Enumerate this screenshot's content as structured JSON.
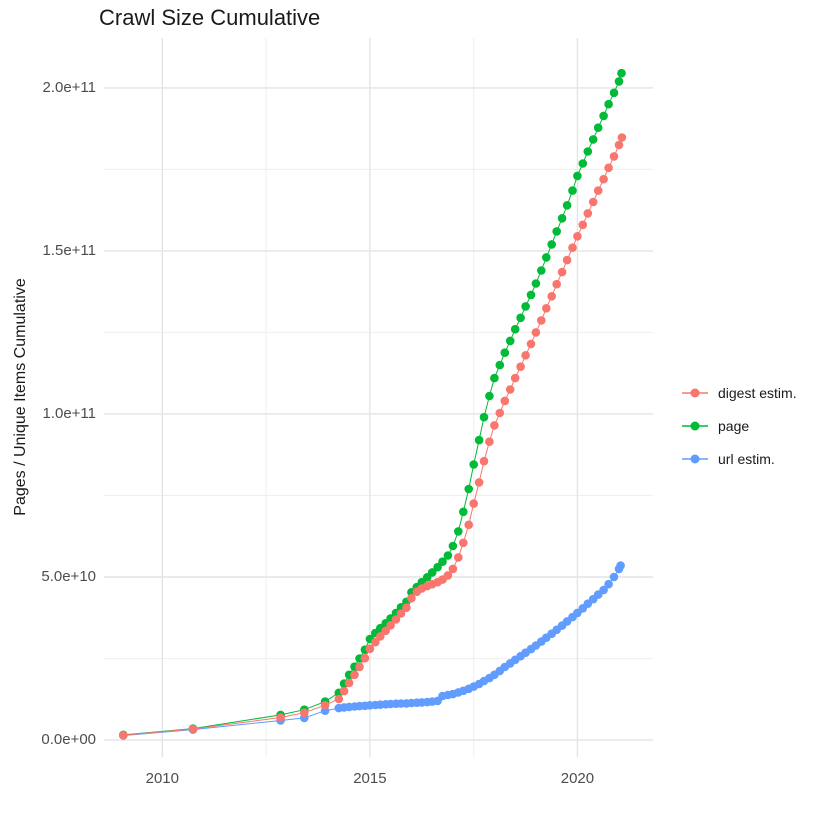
{
  "chart_data": {
    "type": "scatter",
    "title": "Crawl Size Cumulative",
    "ylabel": "Pages / Unique Items Cumulative",
    "xlabel": "",
    "background_color": "#FFFFFF",
    "grid": {
      "major_color": "#E4E4E4",
      "minor_color": "#F0F0F0",
      "grid_on": true
    },
    "x_axis": {
      "range": [
        2008.595,
        2021.82
      ],
      "major_ticks": [
        {
          "value": 2010,
          "label": "2010"
        },
        {
          "value": 2015,
          "label": "2015"
        },
        {
          "value": 2020,
          "label": "2020"
        }
      ],
      "minor_ticks": [
        2012.5,
        2017.5
      ]
    },
    "y_axis": {
      "unit_multiplier": 1000000000.0,
      "range_e9": [
        -5.2,
        215.3
      ],
      "major_ticks": [
        {
          "value_e9": 0,
          "label": "0.0e+00"
        },
        {
          "value_e9": 50,
          "label": "5.0e+10"
        },
        {
          "value_e9": 100,
          "label": "1.0e+11"
        },
        {
          "value_e9": 150,
          "label": "1.5e+11"
        },
        {
          "value_e9": 200,
          "label": "2.0e+11"
        }
      ],
      "minor_ticks_e9": [
        25,
        75,
        125,
        175
      ]
    },
    "legend": {
      "position": "right"
    },
    "series": [
      {
        "name": "digest estim.",
        "color": "#F8766D",
        "points_year_value_e9": [
          [
            2009.06,
            1.5
          ],
          [
            2010.74,
            3.4
          ],
          [
            2012.85,
            6.9
          ],
          [
            2013.42,
            8.4
          ],
          [
            2013.92,
            10.7
          ],
          [
            2014.25,
            12.6
          ],
          [
            2014.38,
            15.0
          ],
          [
            2014.5,
            17.5
          ],
          [
            2014.63,
            20.0
          ],
          [
            2014.75,
            22.4
          ],
          [
            2014.88,
            25.1
          ],
          [
            2015.0,
            28.0
          ],
          [
            2015.13,
            30.0
          ],
          [
            2015.25,
            31.8
          ],
          [
            2015.38,
            33.5
          ],
          [
            2015.5,
            35.2
          ],
          [
            2015.63,
            37.0
          ],
          [
            2015.75,
            38.8
          ],
          [
            2015.88,
            40.6
          ],
          [
            2016.0,
            43.5
          ],
          [
            2016.13,
            45.5
          ],
          [
            2016.25,
            46.5
          ],
          [
            2016.38,
            47.2
          ],
          [
            2016.5,
            47.8
          ],
          [
            2016.63,
            48.4
          ],
          [
            2016.75,
            49.2
          ],
          [
            2016.88,
            50.5
          ],
          [
            2017.0,
            52.5
          ],
          [
            2017.13,
            56.0
          ],
          [
            2017.25,
            60.5
          ],
          [
            2017.38,
            66.0
          ],
          [
            2017.5,
            72.5
          ],
          [
            2017.63,
            79.0
          ],
          [
            2017.75,
            85.5
          ],
          [
            2017.88,
            91.5
          ],
          [
            2018.0,
            96.5
          ],
          [
            2018.13,
            100.3
          ],
          [
            2018.25,
            104.0
          ],
          [
            2018.38,
            107.5
          ],
          [
            2018.5,
            111.0
          ],
          [
            2018.63,
            114.5
          ],
          [
            2018.75,
            118.0
          ],
          [
            2018.88,
            121.5
          ],
          [
            2019.0,
            125.0
          ],
          [
            2019.13,
            128.7
          ],
          [
            2019.25,
            132.4
          ],
          [
            2019.38,
            136.1
          ],
          [
            2019.5,
            139.8
          ],
          [
            2019.63,
            143.5
          ],
          [
            2019.75,
            147.2
          ],
          [
            2019.88,
            151.0
          ],
          [
            2020.0,
            154.5
          ],
          [
            2020.13,
            158.0
          ],
          [
            2020.25,
            161.5
          ],
          [
            2020.38,
            165.0
          ],
          [
            2020.5,
            168.5
          ],
          [
            2020.63,
            172.0
          ],
          [
            2020.75,
            175.5
          ],
          [
            2020.88,
            179.0
          ],
          [
            2021.0,
            182.5
          ],
          [
            2021.07,
            184.8
          ]
        ]
      },
      {
        "name": "page",
        "color": "#00BA38",
        "points_year_value_e9": [
          [
            2009.06,
            1.6
          ],
          [
            2010.74,
            3.5
          ],
          [
            2012.85,
            7.7
          ],
          [
            2013.42,
            9.3
          ],
          [
            2013.92,
            11.8
          ],
          [
            2014.25,
            14.5
          ],
          [
            2014.38,
            17.3
          ],
          [
            2014.5,
            20.0
          ],
          [
            2014.63,
            22.5
          ],
          [
            2014.75,
            25.0
          ],
          [
            2014.88,
            27.7
          ],
          [
            2015.0,
            31.0
          ],
          [
            2015.13,
            32.8
          ],
          [
            2015.25,
            34.3
          ],
          [
            2015.38,
            35.8
          ],
          [
            2015.5,
            37.3
          ],
          [
            2015.63,
            39.0
          ],
          [
            2015.75,
            40.7
          ],
          [
            2015.88,
            42.4
          ],
          [
            2016.0,
            45.3
          ],
          [
            2016.13,
            46.9
          ],
          [
            2016.25,
            48.4
          ],
          [
            2016.38,
            49.9
          ],
          [
            2016.5,
            51.4
          ],
          [
            2016.63,
            53.0
          ],
          [
            2016.75,
            54.7
          ],
          [
            2016.88,
            56.6
          ],
          [
            2017.0,
            59.5
          ],
          [
            2017.13,
            64.0
          ],
          [
            2017.25,
            70.0
          ],
          [
            2017.38,
            77.0
          ],
          [
            2017.5,
            84.5
          ],
          [
            2017.63,
            92.0
          ],
          [
            2017.75,
            99.0
          ],
          [
            2017.88,
            105.5
          ],
          [
            2018.0,
            111.0
          ],
          [
            2018.13,
            115.0
          ],
          [
            2018.25,
            118.8
          ],
          [
            2018.38,
            122.4
          ],
          [
            2018.5,
            126.0
          ],
          [
            2018.63,
            129.5
          ],
          [
            2018.75,
            133.0
          ],
          [
            2018.88,
            136.5
          ],
          [
            2019.0,
            140.0
          ],
          [
            2019.13,
            144.0
          ],
          [
            2019.25,
            148.0
          ],
          [
            2019.38,
            152.0
          ],
          [
            2019.5,
            156.0
          ],
          [
            2019.63,
            160.0
          ],
          [
            2019.75,
            164.0
          ],
          [
            2019.88,
            168.5
          ],
          [
            2020.0,
            173.0
          ],
          [
            2020.13,
            176.8
          ],
          [
            2020.25,
            180.5
          ],
          [
            2020.38,
            184.2
          ],
          [
            2020.5,
            187.8
          ],
          [
            2020.63,
            191.4
          ],
          [
            2020.75,
            195.0
          ],
          [
            2020.88,
            198.5
          ],
          [
            2021.0,
            202.0
          ],
          [
            2021.06,
            204.5
          ]
        ]
      },
      {
        "name": "url estim.",
        "color": "#619CFF",
        "points_year_value_e9": [
          [
            2009.06,
            1.4
          ],
          [
            2010.74,
            3.2
          ],
          [
            2012.85,
            6.0
          ],
          [
            2013.42,
            6.8
          ],
          [
            2013.92,
            9.0
          ],
          [
            2014.25,
            9.8
          ],
          [
            2014.38,
            10.0
          ],
          [
            2014.5,
            10.15
          ],
          [
            2014.63,
            10.3
          ],
          [
            2014.75,
            10.4
          ],
          [
            2014.88,
            10.5
          ],
          [
            2015.0,
            10.65
          ],
          [
            2015.13,
            10.75
          ],
          [
            2015.25,
            10.85
          ],
          [
            2015.38,
            10.95
          ],
          [
            2015.5,
            11.05
          ],
          [
            2015.63,
            11.15
          ],
          [
            2015.75,
            11.2
          ],
          [
            2015.88,
            11.25
          ],
          [
            2016.0,
            11.35
          ],
          [
            2016.13,
            11.45
          ],
          [
            2016.25,
            11.55
          ],
          [
            2016.38,
            11.65
          ],
          [
            2016.5,
            11.8
          ],
          [
            2016.63,
            12.0
          ],
          [
            2016.75,
            13.5
          ],
          [
            2016.88,
            13.8
          ],
          [
            2017.0,
            14.1
          ],
          [
            2017.13,
            14.6
          ],
          [
            2017.25,
            15.1
          ],
          [
            2017.38,
            15.7
          ],
          [
            2017.5,
            16.4
          ],
          [
            2017.63,
            17.2
          ],
          [
            2017.75,
            18.1
          ],
          [
            2017.88,
            19.0
          ],
          [
            2018.0,
            20.0
          ],
          [
            2018.13,
            21.2
          ],
          [
            2018.25,
            22.4
          ],
          [
            2018.38,
            23.5
          ],
          [
            2018.5,
            24.6
          ],
          [
            2018.63,
            25.7
          ],
          [
            2018.75,
            26.8
          ],
          [
            2018.88,
            27.9
          ],
          [
            2019.0,
            29.0
          ],
          [
            2019.13,
            30.2
          ],
          [
            2019.25,
            31.4
          ],
          [
            2019.38,
            32.6
          ],
          [
            2019.5,
            33.8
          ],
          [
            2019.63,
            35.1
          ],
          [
            2019.75,
            36.4
          ],
          [
            2019.88,
            37.7
          ],
          [
            2020.0,
            39.0
          ],
          [
            2020.13,
            40.4
          ],
          [
            2020.25,
            41.8
          ],
          [
            2020.38,
            43.2
          ],
          [
            2020.5,
            44.6
          ],
          [
            2020.63,
            46.0
          ],
          [
            2020.75,
            47.8
          ],
          [
            2020.88,
            50.0
          ],
          [
            2021.0,
            52.5
          ],
          [
            2021.04,
            53.5
          ]
        ]
      }
    ]
  }
}
